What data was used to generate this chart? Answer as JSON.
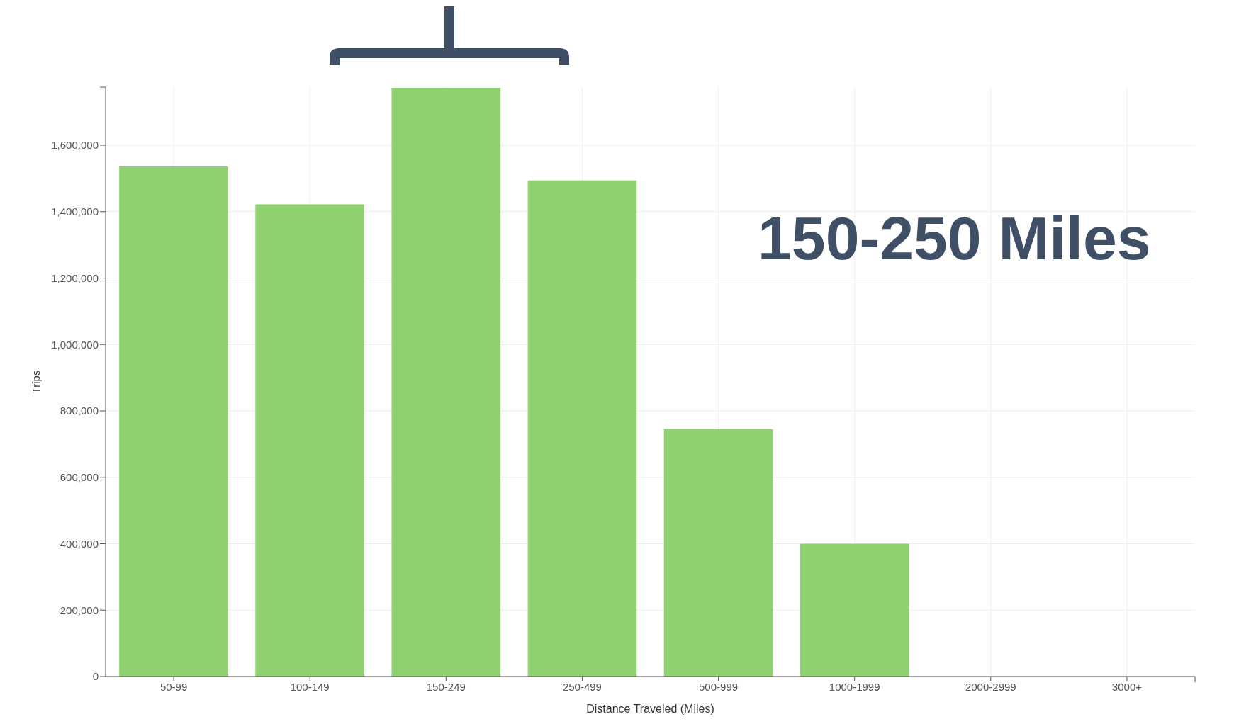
{
  "chart_data": {
    "type": "bar",
    "xlabel": "Distance Traveled (Miles)",
    "ylabel": "Trips",
    "categories": [
      "50-99",
      "100-149",
      "150-249",
      "250-499",
      "500-999",
      "1000-1999",
      "2000-2999",
      "3000+"
    ],
    "values": [
      1536000,
      1422000,
      1773000,
      1494000,
      745000,
      400000,
      null,
      null
    ],
    "color": "#8fd16f",
    "ylim": [
      0,
      1775000
    ],
    "yticks": [
      {
        "value": 0,
        "label": "0"
      },
      {
        "value": 200000,
        "label": "200,000"
      },
      {
        "value": 400000,
        "label": "400,000"
      },
      {
        "value": 600000,
        "label": "600,000"
      },
      {
        "value": 800000,
        "label": "800,000"
      },
      {
        "value": 1000000,
        "label": "1,000,000"
      },
      {
        "value": 1200000,
        "label": "1,200,000"
      },
      {
        "value": 1400000,
        "label": "1,400,000"
      },
      {
        "value": 1600000,
        "label": "1,600,000"
      }
    ],
    "grid": true,
    "annotations": [
      "150-250 Miles"
    ]
  }
}
